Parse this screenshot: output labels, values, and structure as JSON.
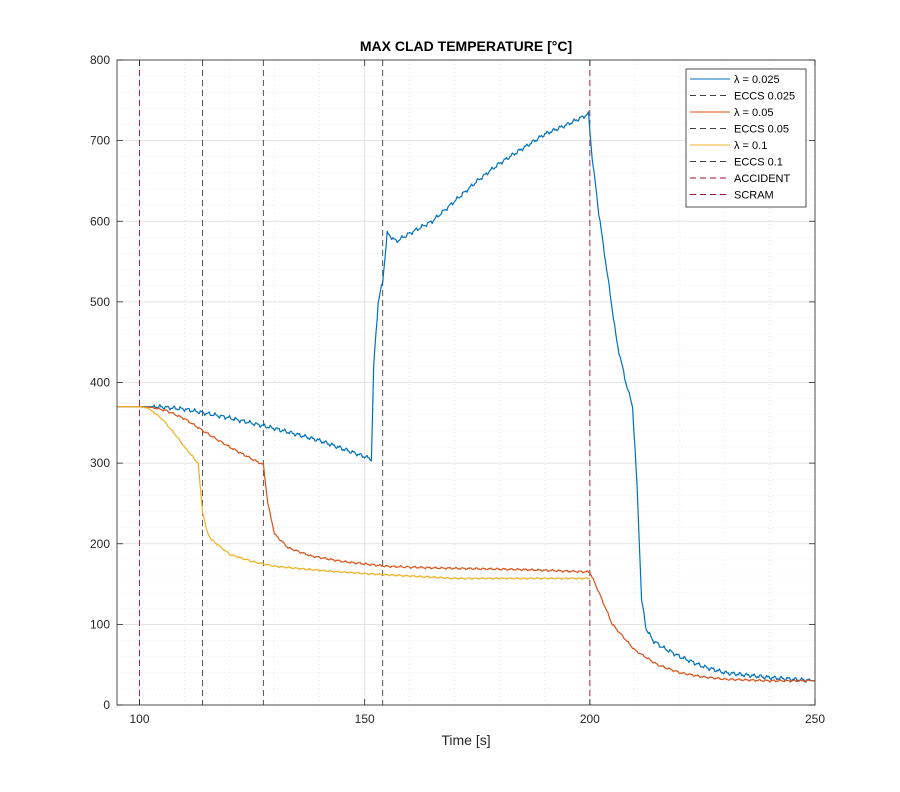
{
  "chart_data": {
    "type": "line",
    "title": "MAX CLAD TEMPERATURE [°C]",
    "xlabel": "Time [s]",
    "ylabel": "",
    "xlim": [
      95,
      250
    ],
    "ylim": [
      0,
      800
    ],
    "xticks": [
      100,
      150,
      200,
      250
    ],
    "yticks": [
      0,
      100,
      200,
      300,
      400,
      500,
      600,
      700,
      800
    ],
    "grid": true,
    "legend_position": "top-right",
    "colors": {
      "lambda_025": "#0072BD",
      "lambda_05": "#D95319",
      "lambda_1": "#EDB120",
      "eccs": "#404040",
      "events": "#A2142F"
    },
    "series": [
      {
        "name": "λ = 0.025",
        "color": "#0072BD",
        "noise": 3,
        "x": [
          95,
          100,
          104,
          110,
          120,
          130,
          140,
          151.5,
          152,
          153,
          154,
          155,
          157,
          160,
          165,
          170,
          175,
          180,
          185,
          190,
          195,
          199.7,
          200.5,
          202,
          204,
          206,
          208,
          209.5,
          210.5,
          211.5,
          212.5,
          214,
          216,
          220,
          225,
          230,
          235,
          240,
          245,
          250
        ],
        "y": [
          370,
          370,
          370,
          367,
          356,
          343,
          328,
          305,
          420,
          500,
          525,
          585,
          575,
          585,
          600,
          625,
          650,
          672,
          690,
          708,
          720,
          733,
          680,
          610,
          530,
          450,
          400,
          370,
          270,
          130,
          95,
          80,
          72,
          60,
          48,
          40,
          37,
          34,
          32,
          30
        ]
      },
      {
        "name": "λ = 0.05",
        "color": "#D95319",
        "noise": 1.5,
        "x": [
          95,
          100,
          103,
          106,
          110,
          115,
          120,
          125,
          127.5,
          128.5,
          130,
          133,
          138,
          145,
          155,
          165,
          175,
          185,
          195,
          200,
          202,
          205,
          210,
          215,
          220,
          225,
          230,
          240,
          250
        ],
        "y": [
          370,
          370,
          369,
          365,
          355,
          337,
          320,
          305,
          298,
          250,
          212,
          195,
          185,
          178,
          172,
          170,
          169,
          168,
          166,
          165,
          140,
          100,
          68,
          50,
          40,
          35,
          32,
          30,
          30
        ]
      },
      {
        "name": "λ = 0.1",
        "color": "#EDB120",
        "noise": 1.2,
        "x": [
          95,
          100,
          102,
          105,
          108,
          110,
          113,
          114,
          115,
          116,
          120,
          125,
          130,
          140,
          150,
          160,
          170,
          180,
          190,
          200
        ],
        "y": [
          370,
          370,
          368,
          355,
          335,
          320,
          300,
          240,
          215,
          205,
          187,
          178,
          172,
          167,
          163,
          160,
          157,
          157,
          157,
          157
        ]
      }
    ],
    "vlines": [
      {
        "name": "ECCS 0.025",
        "x": 154,
        "color": "#404040",
        "style": "dashed"
      },
      {
        "name": "ECCS 0.05",
        "x": 127.5,
        "color": "#404040",
        "style": "dashed"
      },
      {
        "name": "ECCS 0.1",
        "x": 114,
        "color": "#404040",
        "style": "dashed"
      },
      {
        "name": "ACCIDENT",
        "x": 100,
        "color": "#A2142F",
        "style": "dashed"
      },
      {
        "name": "SCRAM",
        "x": 200,
        "color": "#A2142F",
        "style": "dashed"
      }
    ],
    "legend": [
      {
        "label": "λ = 0.025",
        "color": "#0072BD",
        "style": "solid"
      },
      {
        "label": "ECCS 0.025",
        "color": "#404040",
        "style": "dashed"
      },
      {
        "label": "λ = 0.05",
        "color": "#D95319",
        "style": "solid"
      },
      {
        "label": "ECCS 0.05",
        "color": "#404040",
        "style": "dashed"
      },
      {
        "label": "λ = 0.1",
        "color": "#EDB120",
        "style": "solid"
      },
      {
        "label": "ECCS 0.1",
        "color": "#404040",
        "style": "dashed"
      },
      {
        "label": "ACCIDENT",
        "color": "#A2142F",
        "style": "dashed"
      },
      {
        "label": "SCRAM",
        "color": "#A2142F",
        "style": "dashed"
      }
    ]
  }
}
